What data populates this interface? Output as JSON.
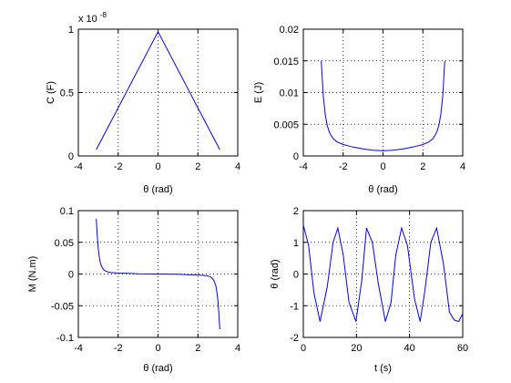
{
  "chart_data": [
    {
      "type": "line",
      "xlabel": "θ (rad)",
      "ylabel": "C (F)",
      "exponent_label": "x 10",
      "exponent_power": "-8",
      "xlim": [
        -4,
        4
      ],
      "ylim": [
        0,
        1
      ],
      "xticks": [
        "-4",
        "-2",
        "0",
        "2",
        "4"
      ],
      "yticks": [
        "0",
        "0.5",
        "1"
      ],
      "xtick_values": [
        -4,
        -2,
        0,
        2,
        4
      ],
      "ytick_values": [
        0,
        0.5,
        1
      ],
      "grid": true,
      "series": [
        {
          "x": [
            -3.1,
            0,
            3.1
          ],
          "y": [
            0.05,
            0.98,
            0.05
          ],
          "color": "#0000ff"
        }
      ]
    },
    {
      "type": "line",
      "xlabel": "θ (rad)",
      "ylabel": "E (J)",
      "xlim": [
        -4,
        4
      ],
      "ylim": [
        0,
        0.02
      ],
      "xticks": [
        "-4",
        "-2",
        "0",
        "2",
        "4"
      ],
      "yticks": [
        "0",
        "0.005",
        "0.01",
        "0.015",
        "0.02"
      ],
      "xtick_values": [
        -4,
        -2,
        0,
        2,
        4
      ],
      "ytick_values": [
        0,
        0.005,
        0.01,
        0.015,
        0.02
      ],
      "grid": true,
      "series": [
        {
          "x": [
            -3.1,
            -3.0,
            -2.9,
            -2.8,
            -2.7,
            -2.6,
            -2.5,
            -2.3,
            -2.0,
            -1.5,
            -1.0,
            -0.5,
            0,
            0.5,
            1.0,
            1.5,
            2.0,
            2.3,
            2.5,
            2.6,
            2.7,
            2.8,
            2.9,
            3.0,
            3.1
          ],
          "y": [
            0.015,
            0.0095,
            0.0065,
            0.0048,
            0.0038,
            0.0032,
            0.0027,
            0.0022,
            0.0018,
            0.0014,
            0.0011,
            0.0009,
            0.0008,
            0.0009,
            0.0011,
            0.0014,
            0.0018,
            0.0022,
            0.0027,
            0.0032,
            0.0038,
            0.0048,
            0.0065,
            0.0095,
            0.015
          ],
          "color": "#0000ff"
        }
      ]
    },
    {
      "type": "line",
      "xlabel": "θ (rad)",
      "ylabel": "M (N.m)",
      "xlim": [
        -4,
        4
      ],
      "ylim": [
        -0.1,
        0.1
      ],
      "xticks": [
        "-4",
        "-2",
        "0",
        "2",
        "4"
      ],
      "yticks": [
        "-0.1",
        "-0.05",
        "0",
        "0.05",
        "0.1"
      ],
      "xtick_values": [
        -4,
        -2,
        0,
        2,
        4
      ],
      "ytick_values": [
        -0.1,
        -0.05,
        0,
        0.05,
        0.1
      ],
      "grid": true,
      "series": [
        {
          "x": [
            -3.1,
            -3.05,
            -3.0,
            -2.95,
            -2.9,
            -2.8,
            -2.7,
            -2.6,
            -2.4,
            -2.0,
            -1.5,
            -1.0,
            0,
            1.0,
            1.5,
            2.0,
            2.4,
            2.6,
            2.7,
            2.8,
            2.9,
            2.95,
            3.0,
            3.05,
            3.1
          ],
          "y": [
            0.087,
            0.06,
            0.04,
            0.027,
            0.018,
            0.01,
            0.006,
            0.004,
            0.0025,
            0.0015,
            0.001,
            0.0005,
            0,
            -0.0005,
            -0.001,
            -0.0015,
            -0.0025,
            -0.004,
            -0.006,
            -0.01,
            -0.018,
            -0.027,
            -0.04,
            -0.06,
            -0.087
          ],
          "color": "#0000ff"
        }
      ]
    },
    {
      "type": "line",
      "xlabel": "t (s)",
      "ylabel": "θ (rad)",
      "xlim": [
        0,
        60
      ],
      "ylim": [
        -2,
        2
      ],
      "xticks": [
        "0",
        "20",
        "40",
        "60"
      ],
      "yticks": [
        "-2",
        "-1",
        "0",
        "1",
        "2"
      ],
      "xtick_values": [
        0,
        20,
        40,
        60
      ],
      "ytick_values": [
        -2,
        -1,
        0,
        1,
        2
      ],
      "grid": true,
      "series": [
        {
          "x": [
            0,
            2,
            4,
            6.3,
            9,
            11.2,
            13,
            15,
            17.2,
            19.8,
            22,
            23.8,
            26,
            28.2,
            30.9,
            33,
            34.8,
            37,
            39.2,
            41.9,
            44,
            45.8,
            48,
            50.2,
            52.8,
            55,
            56.8,
            58.5,
            60
          ],
          "y": [
            1.55,
            0.9,
            -0.6,
            -1.5,
            -0.4,
            1.0,
            1.45,
            0.6,
            -0.9,
            -1.5,
            -0.2,
            1.45,
            1.0,
            -0.3,
            -1.5,
            -0.9,
            0.6,
            1.45,
            0.9,
            -0.8,
            -1.5,
            -0.5,
            1.0,
            1.45,
            0.3,
            -1.2,
            -1.45,
            -1.5,
            -1.25
          ],
          "color": "#0000ff"
        }
      ]
    }
  ]
}
